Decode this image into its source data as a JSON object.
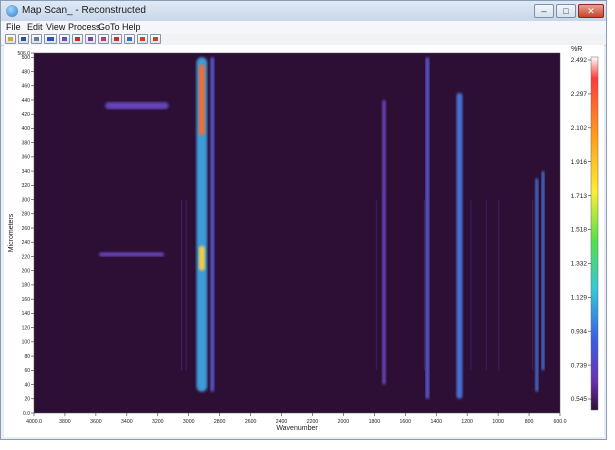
{
  "window": {
    "title": "Map Scan_ - Reconstructed",
    "controls": {
      "minimize": "–",
      "maximize": "□",
      "close": "✕"
    }
  },
  "menu": [
    "File",
    "Edit",
    "View",
    "Process",
    "GoTo",
    "Help"
  ],
  "toolbar": {
    "icons": [
      "open-icon",
      "save-icon",
      "print-icon",
      "abc-icon",
      "grid-icon",
      "spectrum-icon",
      "map-icon",
      "target-icon",
      "cursor-icon",
      "baseline-icon",
      "zoom-icon",
      "unzoom-icon"
    ]
  },
  "chart_data": {
    "type": "heatmap",
    "xlabel": "Wavenumber",
    "ylabel": "Micrometers",
    "xlim": [
      4000,
      600
    ],
    "ylim": [
      0,
      500
    ],
    "x_ticks": [
      "4000.0",
      "3800",
      "3600",
      "3400",
      "3200",
      "3000",
      "2800",
      "2600",
      "2400",
      "2200",
      "2000",
      "1800",
      "1600",
      "1400",
      "1200",
      "1000",
      "800",
      "600.0"
    ],
    "y_ticks": [
      "0.0",
      "20",
      "40",
      "60",
      "80",
      "100",
      "120",
      "140",
      "160",
      "180",
      "200",
      "220",
      "240",
      "260",
      "280",
      "300",
      "320",
      "340",
      "360",
      "380",
      "400",
      "420",
      "440",
      "460",
      "480",
      "500",
      "506.0"
    ],
    "colorbar_unit": "%R",
    "colorbar_ticks": [
      "2.492",
      "2.297",
      "2.102",
      "1.916",
      "1.713",
      "1.518",
      "1.332",
      "1.129",
      "0.934",
      "0.739",
      "0.545"
    ],
    "background_color": "#2d0f35",
    "features": [
      {
        "wn_from": 2950,
        "wn_to": 2880,
        "y_from": 30,
        "y_to": 500,
        "level": 1.2
      },
      {
        "wn_from": 2935,
        "wn_to": 2895,
        "y_from": 390,
        "y_to": 490,
        "level": 2.3
      },
      {
        "wn_from": 2935,
        "wn_to": 2895,
        "y_from": 200,
        "y_to": 235,
        "level": 2.1
      },
      {
        "wn_from": 2860,
        "wn_to": 2835,
        "y_from": 30,
        "y_to": 500,
        "level": 0.9
      },
      {
        "wn_from": 3540,
        "wn_to": 3130,
        "y_from": 427,
        "y_to": 437,
        "level": 0.8
      },
      {
        "wn_from": 3580,
        "wn_to": 3160,
        "y_from": 220,
        "y_to": 226,
        "level": 0.75
      },
      {
        "wn_from": 1750,
        "wn_to": 1725,
        "y_from": 40,
        "y_to": 440,
        "level": 0.8
      },
      {
        "wn_from": 1470,
        "wn_to": 1445,
        "y_from": 20,
        "y_to": 500,
        "level": 0.85
      },
      {
        "wn_from": 1270,
        "wn_to": 1230,
        "y_from": 20,
        "y_to": 450,
        "level": 0.95
      },
      {
        "wn_from": 760,
        "wn_to": 740,
        "y_from": 30,
        "y_to": 330,
        "level": 1.0
      },
      {
        "wn_from": 720,
        "wn_to": 700,
        "y_from": 60,
        "y_to": 340,
        "level": 1.1
      }
    ]
  }
}
